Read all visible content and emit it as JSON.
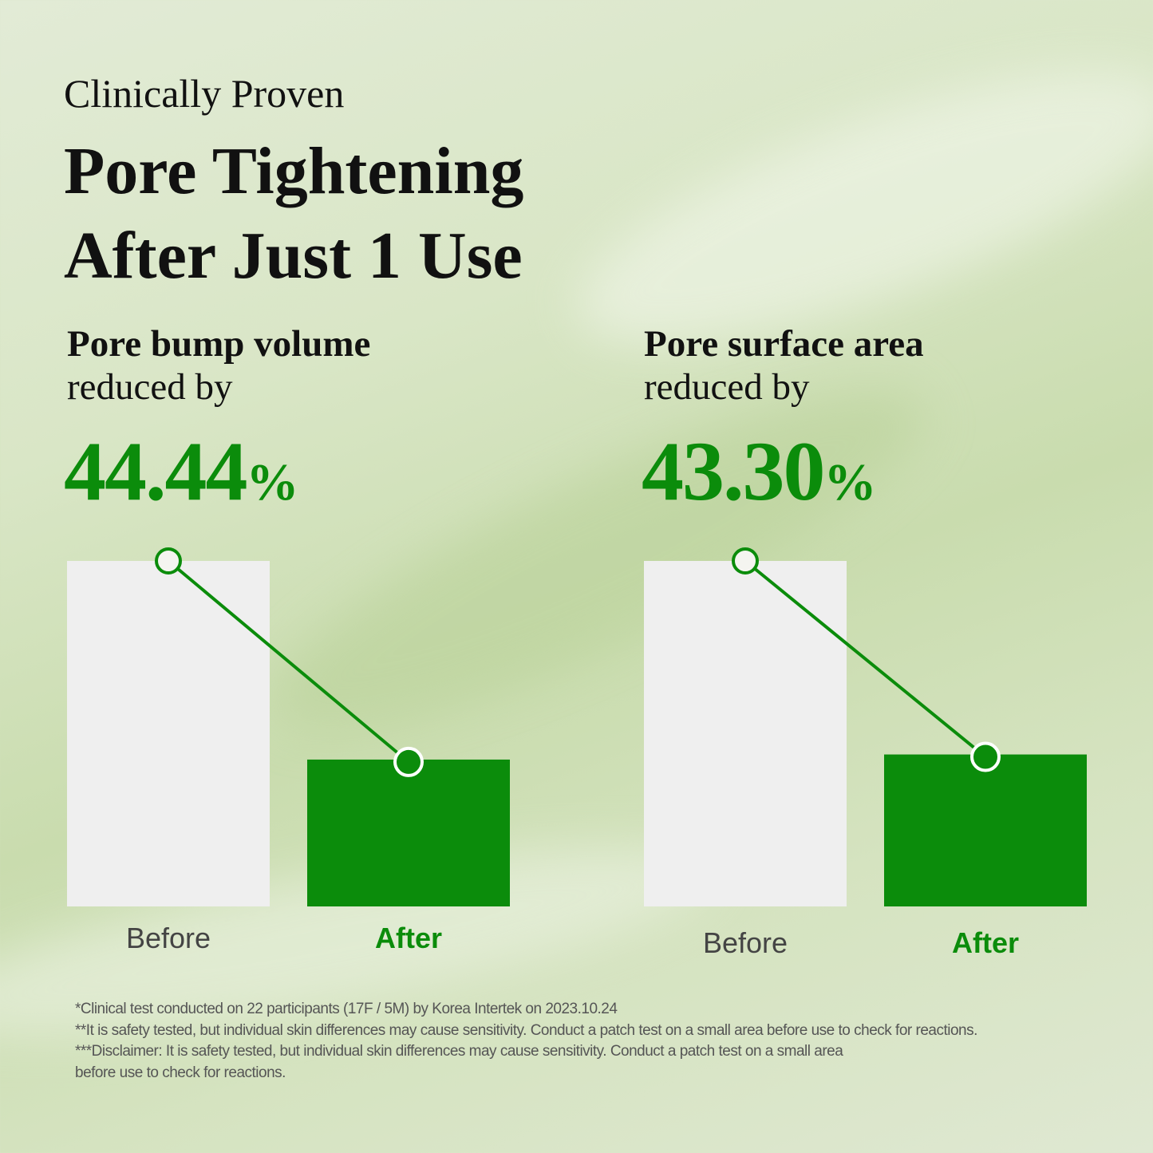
{
  "header": {
    "eyebrow": "Clinically Proven",
    "title_line1": "Pore Tightening",
    "title_line2": "After Just 1 Use"
  },
  "colors": {
    "accent": "#0b8c0b",
    "before_bar": "#efefef"
  },
  "chart_data": [
    {
      "type": "bar",
      "title": "Pore bump volume",
      "subtitle": "reduced by",
      "headline_value": "44.44",
      "headline_unit": "%",
      "categories": [
        "Before",
        "After"
      ],
      "values": [
        100,
        55.56
      ],
      "ylabel": ""
    },
    {
      "type": "bar",
      "title": "Pore surface area",
      "subtitle": "reduced by",
      "headline_value": "43.30",
      "headline_unit": "%",
      "categories": [
        "Before",
        "After"
      ],
      "values": [
        100,
        56.7
      ],
      "ylabel": ""
    }
  ],
  "footnotes": [
    "*Clinical test conducted on 22 participants (17F / 5M) by Korea Intertek on 2023.10.24",
    "**It is safety tested, but individual skin differences may cause sensitivity. Conduct a patch test on a small area before use to check for reactions.",
    "***Disclaimer: It is safety tested, but individual skin differences may cause sensitivity. Conduct a patch test on a small area",
    "before use to check for reactions."
  ]
}
